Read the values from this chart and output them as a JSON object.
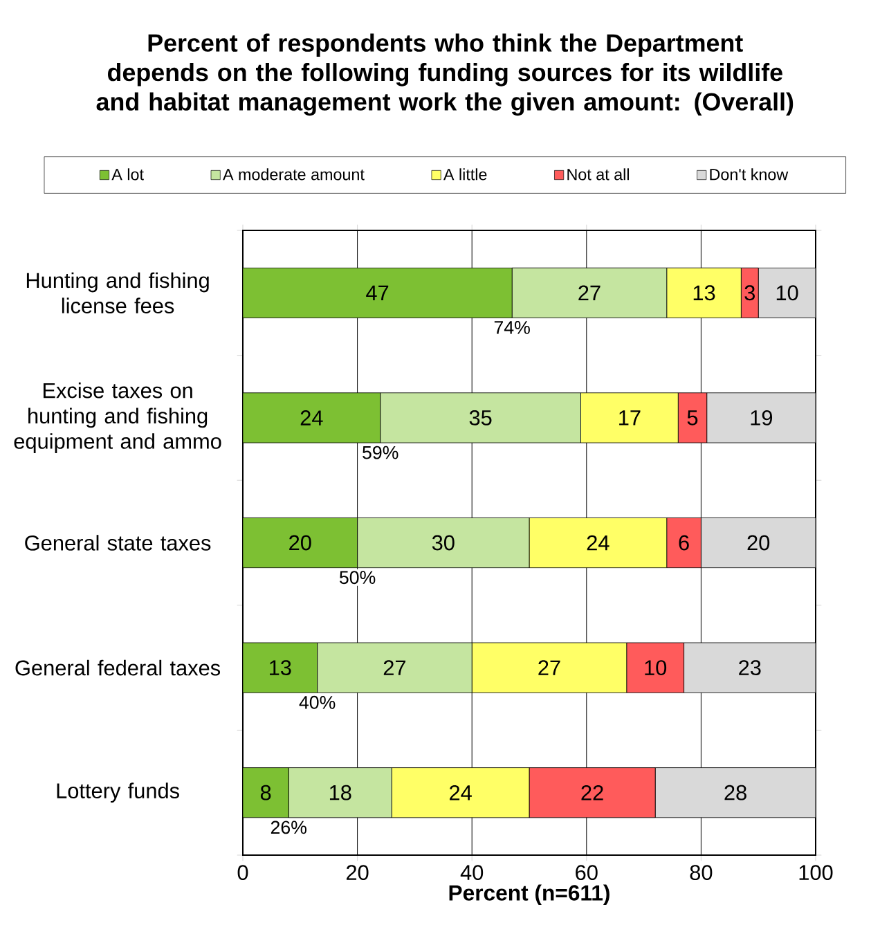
{
  "chart_data": {
    "type": "bar",
    "orientation": "horizontal",
    "stacked": true,
    "title": "Percent of respondents who think the Department depends on the following funding sources for its wildlife and habitat management work the given amount: (Overall)",
    "xlabel": "Percent (n=611)",
    "categories": [
      "Hunting and fishing license fees",
      "Excise taxes on hunting and fishing equipment and ammo",
      "General state taxes",
      "General federal taxes",
      "Lottery funds"
    ],
    "series": [
      {
        "name": "A lot",
        "color": "#7dc033",
        "values": [
          47,
          24,
          20,
          13,
          8
        ]
      },
      {
        "name": "A moderate amount",
        "color": "#c5e5a0",
        "values": [
          27,
          35,
          30,
          27,
          18
        ]
      },
      {
        "name": "A little",
        "color": "#ffff66",
        "values": [
          13,
          17,
          24,
          27,
          24
        ]
      },
      {
        "name": "Not at all",
        "color": "#ff5b5b",
        "values": [
          3,
          5,
          6,
          10,
          22
        ]
      },
      {
        "name": "Don't know",
        "color": "#d9d9d9",
        "values": [
          10,
          19,
          20,
          23,
          28
        ]
      }
    ],
    "xlim": [
      0,
      100
    ],
    "xticks": [
      0,
      20,
      40,
      60,
      80,
      100
    ],
    "grid": "x",
    "legend": "top",
    "data_labels": true,
    "annotations": [
      {
        "text": "74%",
        "x": 47,
        "y": "Hunting and fishing license fees"
      },
      {
        "text": "59%",
        "x": 24,
        "y": "Excise taxes on hunting and fishing equipment and ammo"
      },
      {
        "text": "50%",
        "x": 20,
        "y": "General state taxes"
      },
      {
        "text": "40%",
        "x": 13,
        "y": "General federal taxes"
      },
      {
        "text": "26%",
        "x": 8,
        "y": "Lottery funds"
      }
    ]
  }
}
